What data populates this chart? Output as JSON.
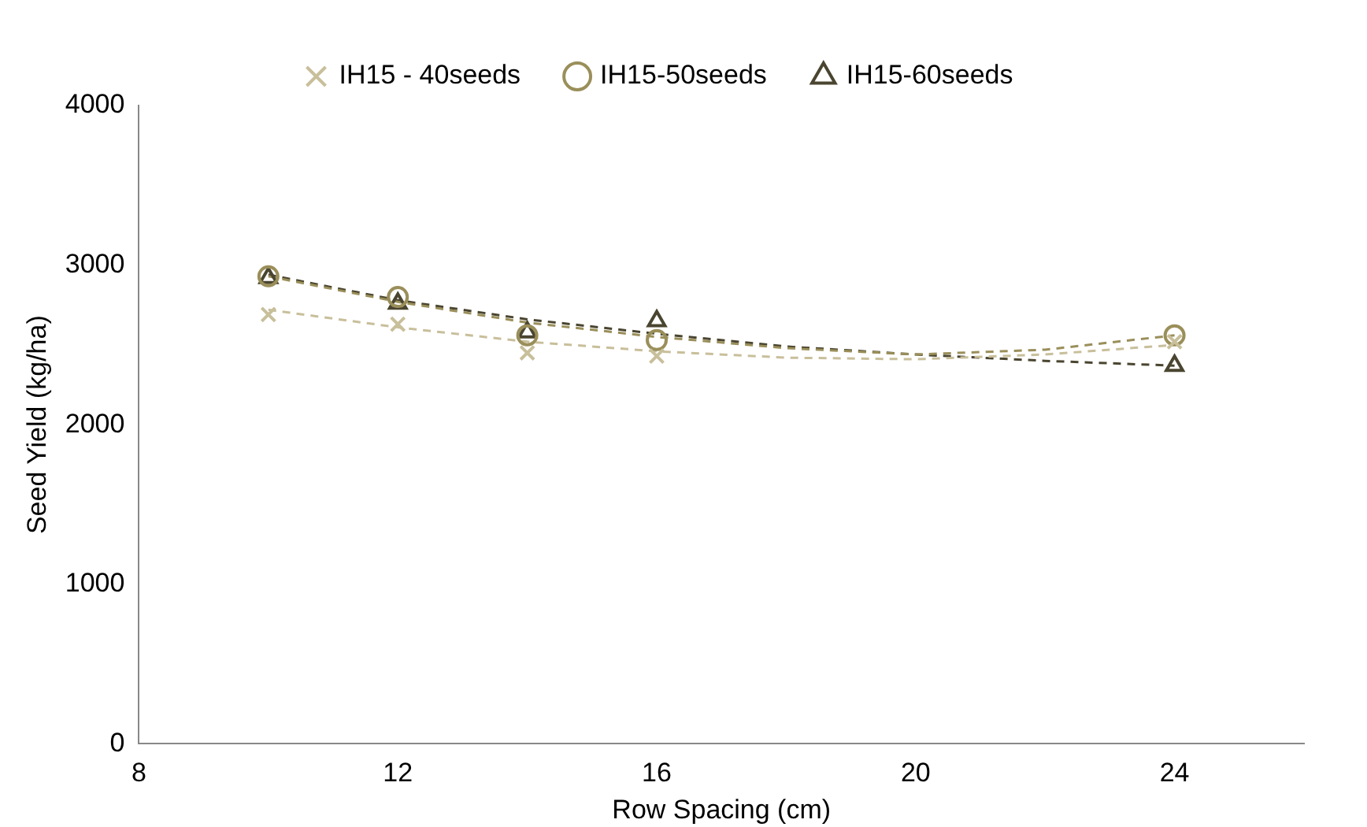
{
  "chart_data": {
    "type": "scatter",
    "xlabel": "Row Spacing (cm)",
    "ylabel": "Seed Yield (kg/ha)",
    "xlim": [
      8,
      26
    ],
    "xticks": [
      8,
      12,
      16,
      20,
      24
    ],
    "ylim": [
      0,
      4000
    ],
    "yticks": [
      0,
      1000,
      2000,
      3000,
      4000
    ],
    "grid": false,
    "legend": "top",
    "series": [
      {
        "name": "IH15 - 40seeds",
        "color": "#c8bf9b",
        "marker": "cross",
        "x": [
          10,
          12,
          14,
          16,
          24
        ],
        "values": [
          2690,
          2630,
          2450,
          2430,
          2520
        ]
      },
      {
        "name": "IH15-50seeds",
        "color": "#9a8f5a",
        "marker": "circle",
        "x": [
          10,
          12,
          14,
          16,
          24
        ],
        "values": [
          2930,
          2800,
          2560,
          2530,
          2560
        ]
      },
      {
        "name": "IH15-60seeds",
        "color": "#4a4530",
        "marker": "triangle",
        "x": [
          10,
          12,
          14,
          16,
          24
        ],
        "values": [
          2920,
          2760,
          2580,
          2650,
          2370
        ]
      },
      {
        "type": "line",
        "color": "#c8bf9b",
        "line_style": "dashed",
        "marker": "none",
        "x": [
          10,
          12,
          14,
          16,
          18,
          20,
          22,
          24
        ],
        "values": [
          2720,
          2610,
          2520,
          2460,
          2420,
          2410,
          2440,
          2500
        ]
      },
      {
        "type": "line",
        "color": "#9a8f5a",
        "line_style": "dashed",
        "marker": "none",
        "x": [
          10,
          12,
          14,
          16,
          18,
          20,
          22,
          24
        ],
        "values": [
          2930,
          2770,
          2640,
          2550,
          2480,
          2440,
          2470,
          2560
        ]
      },
      {
        "type": "line",
        "color": "#4a4530",
        "line_style": "dashed",
        "marker": "none",
        "x": [
          10,
          12,
          14,
          16,
          18,
          20,
          22,
          24
        ],
        "values": [
          2940,
          2780,
          2660,
          2570,
          2490,
          2440,
          2400,
          2370
        ]
      }
    ]
  }
}
